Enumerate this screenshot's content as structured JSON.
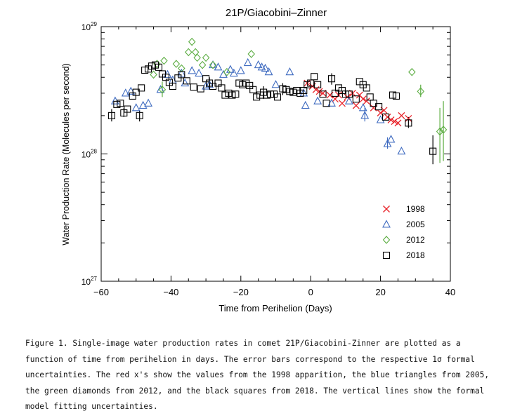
{
  "chart_data": {
    "type": "scatter",
    "title": "21P/Giacobini–Zinner",
    "xlabel": "Time from Perihelion (Days)",
    "ylabel": "Water Production Rate (Molecules per second)",
    "xlim": [
      -60,
      40
    ],
    "ylim": [
      1e+27,
      1e+29
    ],
    "y_scale": "log",
    "x_ticks": [
      -60,
      -40,
      -20,
      0,
      20,
      40
    ],
    "y_ticks": [
      {
        "value": 1e+27,
        "base": "10",
        "exp": "27"
      },
      {
        "value": 1e+28,
        "base": "10",
        "exp": "28"
      },
      {
        "value": 1e+29,
        "base": "10",
        "exp": "29"
      }
    ],
    "legend_position": "lower-right",
    "series": [
      {
        "name": "1998",
        "marker": "x",
        "color": "#e8232a",
        "points": [
          [
            -1,
            3.6e+28
          ],
          [
            0.5,
            3.4e+28
          ],
          [
            1.5,
            3.2e+28
          ],
          [
            2.5,
            3.1e+28
          ],
          [
            3.5,
            3e+28
          ],
          [
            5.5,
            2.9e+28
          ],
          [
            7,
            2.7e+28
          ],
          [
            8,
            2.9e+28
          ],
          [
            9,
            2.5e+28
          ],
          [
            10.5,
            2.8e+28
          ],
          [
            12,
            3e+28
          ],
          [
            13,
            2.4e+28
          ],
          [
            14,
            2.9e+28
          ],
          [
            15,
            2.7e+28
          ],
          [
            16,
            2.6e+28
          ],
          [
            18,
            2.3e+28
          ],
          [
            20,
            2.1e+28
          ],
          [
            21,
            2.2e+28
          ],
          [
            22,
            1.95e+28
          ],
          [
            23,
            1.85e+28
          ],
          [
            24,
            1.8e+28
          ],
          [
            25,
            1.75e+28
          ],
          [
            26,
            2e+28
          ],
          [
            28,
            1.9e+28
          ]
        ]
      },
      {
        "name": "2005",
        "marker": "triangle",
        "color": "#3f6bc0",
        "points": [
          [
            -56,
            2.6e+28
          ],
          [
            -53,
            3e+28
          ],
          [
            -51.5,
            3.1e+28
          ],
          [
            -50,
            2.3e+28
          ],
          [
            -48,
            2.4e+28
          ],
          [
            -46.5,
            2.5e+28
          ],
          [
            -43,
            3.2e+28
          ],
          [
            -41,
            4.2e+28
          ],
          [
            -39.5,
            3.8e+28
          ],
          [
            -37,
            4.3e+28
          ],
          [
            -36,
            3.6e+28
          ],
          [
            -34,
            4.5e+28
          ],
          [
            -32,
            4.3e+28
          ],
          [
            -30,
            3.4e+28
          ],
          [
            -29,
            3.5e+28
          ],
          [
            -28,
            5e+28
          ],
          [
            -26.5,
            4.8e+28
          ],
          [
            -25,
            4.2e+28
          ],
          [
            -23,
            4.6e+28
          ],
          [
            -22,
            4.3e+28
          ],
          [
            -20,
            4.5e+28
          ],
          [
            -18,
            5.2e+28
          ],
          [
            -15,
            5e+28
          ],
          [
            -14,
            4.8e+28
          ],
          [
            -13,
            4.7e+28
          ],
          [
            -12,
            4.4e+28
          ],
          [
            -10,
            3.5e+28
          ],
          [
            -6,
            4.4e+28
          ],
          [
            -2,
            3e+28
          ],
          [
            -1.5,
            2.4e+28
          ],
          [
            2,
            2.6e+28
          ],
          [
            6,
            2.5e+28
          ],
          [
            11,
            2.6e+28
          ],
          [
            15,
            2.3e+28
          ],
          [
            15.5,
            2e+28
          ],
          [
            20,
            1.85e+28
          ],
          [
            22,
            1.2e+28
          ],
          [
            23,
            1.3e+28
          ],
          [
            26,
            1.05e+28
          ]
        ]
      },
      {
        "name": "2012",
        "marker": "diamond",
        "color": "#5cad42",
        "points": [
          [
            -45,
            4.2e+28
          ],
          [
            -44,
            5.1e+28
          ],
          [
            -42.5,
            3.2e+28
          ],
          [
            -42,
            5.4e+28
          ],
          [
            -38.5,
            5.1e+28
          ],
          [
            -37,
            4.7e+28
          ],
          [
            -35,
            6.3e+28
          ],
          [
            -34,
            7.6e+28
          ],
          [
            -33,
            6.3e+28
          ],
          [
            -32.5,
            5.7e+28
          ],
          [
            -31,
            5e+28
          ],
          [
            -30,
            5.7e+28
          ],
          [
            -28,
            5e+28
          ],
          [
            -24,
            4.4e+28
          ],
          [
            -17,
            6.1e+28
          ],
          [
            29,
            4.4e+28
          ],
          [
            31.5,
            3.1e+28
          ],
          [
            37,
            1.5e+28
          ],
          [
            38,
            1.55e+28
          ]
        ]
      },
      {
        "name": "2018",
        "marker": "square",
        "color": "#000000",
        "points": [
          [
            -57,
            2e+28
          ],
          [
            -55.5,
            2.45e+28
          ],
          [
            -54.5,
            2.5e+28
          ],
          [
            -53.5,
            2.1e+28
          ],
          [
            -52.5,
            2.25e+28
          ],
          [
            -51,
            2.85e+28
          ],
          [
            -50,
            3.05e+28
          ],
          [
            -49,
            2e+28
          ],
          [
            -48.5,
            3.3e+28
          ],
          [
            -47.5,
            4.55e+28
          ],
          [
            -46.5,
            4.65e+28
          ],
          [
            -45.5,
            4.9e+28
          ],
          [
            -44.5,
            5e+28
          ],
          [
            -43.5,
            4.8e+28
          ],
          [
            -42.5,
            4.25e+28
          ],
          [
            -41.5,
            4e+28
          ],
          [
            -40.5,
            3.65e+28
          ],
          [
            -39.5,
            3.4e+28
          ],
          [
            -38,
            3.95e+28
          ],
          [
            -37,
            4.2e+28
          ],
          [
            -35.5,
            3.75e+28
          ],
          [
            -33.5,
            3.35e+28
          ],
          [
            -31.5,
            3.25e+28
          ],
          [
            -30,
            3.9e+28
          ],
          [
            -29,
            3.6e+28
          ],
          [
            -28,
            3.4e+28
          ],
          [
            -26.5,
            3.6e+28
          ],
          [
            -25.5,
            3.3e+28
          ],
          [
            -24.5,
            2.9e+28
          ],
          [
            -23.5,
            3e+28
          ],
          [
            -22.5,
            2.9e+28
          ],
          [
            -21.5,
            2.95e+28
          ],
          [
            -20.5,
            3.6e+28
          ],
          [
            -19.5,
            3.5e+28
          ],
          [
            -18.5,
            3.6e+28
          ],
          [
            -17.5,
            3.45e+28
          ],
          [
            -16.5,
            3.2e+28
          ],
          [
            -15.5,
            2.8e+28
          ],
          [
            -14.5,
            2.9e+28
          ],
          [
            -13.5,
            3.05e+28
          ],
          [
            -12.5,
            2.9e+28
          ],
          [
            -11.5,
            2.95e+28
          ],
          [
            -10.5,
            2.95e+28
          ],
          [
            -9.5,
            2.8e+28
          ],
          [
            -8,
            3.25e+28
          ],
          [
            -7,
            3.2e+28
          ],
          [
            -6,
            3.1e+28
          ],
          [
            -5,
            3.05e+28
          ],
          [
            -4,
            3.15e+28
          ],
          [
            -3,
            3e+28
          ],
          [
            -2,
            3.15e+28
          ],
          [
            -1,
            3.5e+28
          ],
          [
            0,
            3.6e+28
          ],
          [
            1,
            4.05e+28
          ],
          [
            2,
            3.5e+28
          ],
          [
            3.5,
            2.95e+28
          ],
          [
            4.5,
            2.5e+28
          ],
          [
            6,
            3.9e+28
          ],
          [
            7,
            3e+28
          ],
          [
            8,
            3.3e+28
          ],
          [
            9,
            3.15e+28
          ],
          [
            10,
            2.95e+28
          ],
          [
            11,
            2.95e+28
          ],
          [
            13,
            2.7e+28
          ],
          [
            14,
            3.7e+28
          ],
          [
            15,
            3.5e+28
          ],
          [
            16,
            3.3e+28
          ],
          [
            17,
            2.8e+28
          ],
          [
            18,
            2.5e+28
          ],
          [
            19.5,
            2.35e+28
          ],
          [
            21.5,
            1.95e+28
          ],
          [
            23.5,
            2.9e+28
          ],
          [
            24.5,
            2.85e+28
          ],
          [
            28,
            1.75e+28
          ],
          [
            35,
            1.05e+28
          ]
        ]
      }
    ],
    "error_bars": [
      {
        "x": 35,
        "lo": 8.3e+27,
        "hi": 1.4e+28,
        "color": "#000000"
      },
      {
        "x": 37,
        "lo": 8.5e+27,
        "hi": 2.3e+28,
        "color": "#5cad42"
      },
      {
        "x": 38,
        "lo": 8.8e+27,
        "hi": 2.6e+28,
        "color": "#5cad42"
      },
      {
        "x": 31.5,
        "lo": 2.8e+28,
        "hi": 3.5e+28,
        "color": "#5cad42"
      },
      {
        "x": -42.5,
        "lo": 2.8e+28,
        "hi": 3.7e+28,
        "color": "#5cad42"
      },
      {
        "x": -57,
        "lo": 1.8e+28,
        "hi": 2.25e+28,
        "color": "#000000"
      },
      {
        "x": -53.5,
        "lo": 1.95e+28,
        "hi": 2.3e+28,
        "color": "#000000"
      },
      {
        "x": -49,
        "lo": 1.8e+28,
        "hi": 2.2e+28,
        "color": "#000000"
      },
      {
        "x": -29,
        "lo": 3.2e+28,
        "hi": 4e+28,
        "color": "#000000"
      },
      {
        "x": -13.5,
        "lo": 2.7e+28,
        "hi": 3.4e+28,
        "color": "#000000"
      },
      {
        "x": -8,
        "lo": 2.9e+28,
        "hi": 3.6e+28,
        "color": "#000000"
      },
      {
        "x": 6,
        "lo": 3.5e+28,
        "hi": 4.3e+28,
        "color": "#000000"
      },
      {
        "x": 15.5,
        "lo": 1.8e+28,
        "hi": 2.3e+28,
        "color": "#3f6bc0"
      },
      {
        "x": 22,
        "lo": 1.1e+28,
        "hi": 1.35e+28,
        "color": "#3f6bc0"
      },
      {
        "x": 28,
        "lo": 1.6e+28,
        "hi": 1.95e+28,
        "color": "#000000"
      }
    ]
  },
  "caption": "Figure 1. Single-image water production rates in comet 21P/Giacobini-Zinner are plotted as a function of time from perihelion in days. The error bars correspond to the respective 1σ formal uncertainties. The red x's show the values from the 1998 apparition, the blue triangles from 2005, the green diamonds from 2012, and the black squares from 2018. The vertical lines show the formal model fitting uncertainties."
}
